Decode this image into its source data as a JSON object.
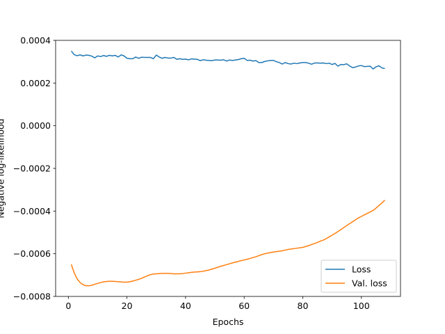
{
  "chart_data": {
    "type": "line",
    "xlabel": "Epochs",
    "ylabel": "Negative log-likelihood",
    "x": [
      1,
      2,
      3,
      4,
      5,
      6,
      7,
      8,
      9,
      10,
      11,
      12,
      13,
      14,
      15,
      16,
      17,
      18,
      19,
      20,
      21,
      22,
      23,
      24,
      25,
      26,
      27,
      28,
      29,
      30,
      31,
      32,
      33,
      34,
      35,
      36,
      37,
      38,
      39,
      40,
      41,
      42,
      43,
      44,
      45,
      46,
      47,
      48,
      49,
      50,
      51,
      52,
      53,
      54,
      55,
      56,
      57,
      58,
      59,
      60,
      61,
      62,
      63,
      64,
      65,
      66,
      67,
      68,
      69,
      70,
      71,
      72,
      73,
      74,
      75,
      76,
      77,
      78,
      79,
      80,
      81,
      82,
      83,
      84,
      85,
      86,
      87,
      88,
      89,
      90,
      91,
      92,
      93,
      94,
      95,
      96,
      97,
      98,
      99,
      100,
      101,
      102,
      103,
      104,
      105,
      106,
      107,
      108
    ],
    "series": [
      {
        "name": "Loss",
        "color": "#1f77b4",
        "values": [
          0.00035,
          0.000333,
          0.000328,
          0.000332,
          0.000327,
          0.000331,
          0.00033,
          0.000326,
          0.000318,
          0.000327,
          0.000324,
          0.000329,
          0.000325,
          0.00033,
          0.000327,
          0.00033,
          0.000322,
          0.000332,
          0.000327,
          0.000316,
          0.000314,
          0.000314,
          0.000322,
          0.000316,
          0.000321,
          0.00032,
          0.00032,
          0.00032,
          0.000314,
          0.000331,
          0.000322,
          0.000316,
          0.00032,
          0.000317,
          0.000317,
          0.00032,
          0.000311,
          0.000314,
          0.000311,
          0.000312,
          0.000309,
          0.000313,
          0.000312,
          0.000311,
          0.000305,
          0.000309,
          0.000307,
          0.000306,
          0.000305,
          0.000308,
          0.000308,
          0.000307,
          0.000309,
          0.000303,
          0.000308,
          0.000306,
          0.000308,
          0.00031,
          0.000314,
          0.000316,
          0.000306,
          0.000307,
          0.000303,
          0.000305,
          0.000296,
          0.000296,
          0.000301,
          0.000304,
          0.000306,
          0.000306,
          0.0003,
          0.000296,
          0.000289,
          0.000296,
          0.000291,
          0.000289,
          0.000293,
          0.000291,
          0.000294,
          0.000296,
          0.000296,
          0.000293,
          0.000288,
          0.000294,
          0.000294,
          0.000293,
          0.000294,
          0.000291,
          0.000293,
          0.000287,
          0.000292,
          0.000279,
          0.000287,
          0.000286,
          0.00029,
          0.00028,
          0.000272,
          0.000275,
          0.00028,
          0.000282,
          0.000277,
          0.000278,
          0.000279,
          0.000266,
          0.000276,
          0.000281,
          0.000271,
          0.000268
        ]
      },
      {
        "name": "Val. loss",
        "color": "#ff7f0e",
        "values": [
          -0.00065,
          -0.00069,
          -0.000718,
          -0.000735,
          -0.000745,
          -0.00075,
          -0.00075,
          -0.000748,
          -0.000743,
          -0.000739,
          -0.000735,
          -0.000732,
          -0.00073,
          -0.000729,
          -0.000729,
          -0.00073,
          -0.000731,
          -0.000732,
          -0.000733,
          -0.000733,
          -0.000731,
          -0.000728,
          -0.000724,
          -0.00072,
          -0.000715,
          -0.000709,
          -0.000703,
          -0.000698,
          -0.000695,
          -0.000694,
          -0.000693,
          -0.000692,
          -0.000692,
          -0.000692,
          -0.000693,
          -0.000694,
          -0.000694,
          -0.000694,
          -0.000693,
          -0.000691,
          -0.000689,
          -0.000687,
          -0.000686,
          -0.000685,
          -0.000684,
          -0.000682,
          -0.000679,
          -0.000676,
          -0.000672,
          -0.000668,
          -0.000663,
          -0.000659,
          -0.000655,
          -0.000651,
          -0.000647,
          -0.000643,
          -0.000639,
          -0.000636,
          -0.000632,
          -0.000629,
          -0.000626,
          -0.000622,
          -0.000618,
          -0.000614,
          -0.000609,
          -0.000604,
          -0.0006,
          -0.000597,
          -0.000594,
          -0.000592,
          -0.00059,
          -0.000588,
          -0.000586,
          -0.000583,
          -0.00058,
          -0.000578,
          -0.000576,
          -0.000574,
          -0.000572,
          -0.00057,
          -0.000566,
          -0.000562,
          -0.000557,
          -0.000552,
          -0.000547,
          -0.000541,
          -0.000536,
          -0.000529,
          -0.000521,
          -0.000513,
          -0.000505,
          -0.000496,
          -0.000487,
          -0.000477,
          -0.000468,
          -0.000459,
          -0.00045,
          -0.000441,
          -0.000432,
          -0.000425,
          -0.000418,
          -0.000411,
          -0.000404,
          -0.000397,
          -0.000386,
          -0.000374,
          -0.000362,
          -0.000349
        ]
      }
    ],
    "xlim": [
      -4.35,
      113.35
    ],
    "ylim": [
      -0.0008,
      0.0004
    ],
    "xticks": [
      0,
      20,
      40,
      60,
      80,
      100
    ],
    "yticks": [
      {
        "value": -0.0008,
        "label": "−0.0008"
      },
      {
        "value": -0.0006,
        "label": "−0.0006"
      },
      {
        "value": -0.0004,
        "label": "−0.0004"
      },
      {
        "value": -0.0002,
        "label": "−0.0002"
      },
      {
        "value": 0,
        "label": "0.0000"
      },
      {
        "value": 0.0002,
        "label": "0.0002"
      },
      {
        "value": 0.0004,
        "label": "0.0004"
      }
    ],
    "legend": "lower right",
    "grid": false
  }
}
